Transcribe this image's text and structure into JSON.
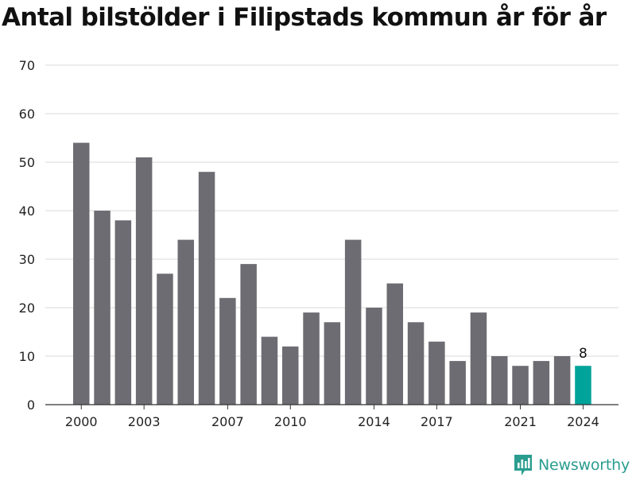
{
  "title": "Antal bilstölder i Filipstads kommun år för år",
  "brand": "Newsworthy",
  "colors": {
    "bar": "#6d6c72",
    "highlight": "#00a39a",
    "grid": "#d9d9d9",
    "axis": "#333333",
    "brand": "#2a9d8f"
  },
  "chart_data": {
    "type": "bar",
    "title": "Antal bilstölder i Filipstads kommun år för år",
    "xlabel": "",
    "ylabel": "",
    "categories": [
      "2000",
      "2001",
      "2002",
      "2003",
      "2004",
      "2005",
      "2006",
      "2007",
      "2008",
      "2009",
      "2010",
      "2011",
      "2012",
      "2013",
      "2014",
      "2015",
      "2016",
      "2017",
      "2018",
      "2019",
      "2020",
      "2021",
      "2022",
      "2023",
      "2024"
    ],
    "values": [
      54,
      40,
      38,
      51,
      27,
      34,
      48,
      22,
      29,
      14,
      12,
      19,
      17,
      34,
      20,
      25,
      17,
      13,
      9,
      19,
      10,
      8,
      9,
      10,
      8
    ],
    "ylim": [
      0,
      70
    ],
    "yticks": [
      0,
      10,
      20,
      30,
      40,
      50,
      60,
      70
    ],
    "xtick_labels": [
      "2000",
      "2003",
      "2007",
      "2010",
      "2014",
      "2017",
      "2021",
      "2024"
    ],
    "highlight_category": "2024",
    "data_labels": [
      {
        "category": "2024",
        "text": "8"
      }
    ],
    "grid": true,
    "legend": "none"
  }
}
